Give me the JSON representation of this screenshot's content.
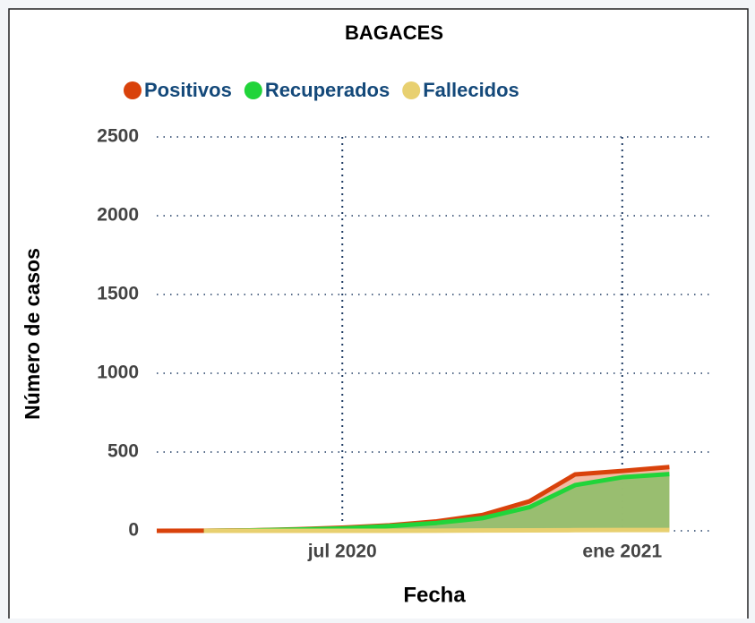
{
  "chart_data": {
    "type": "area",
    "title": "BAGACES",
    "xlabel": "Fecha",
    "ylabel": "Número de casos",
    "x": [
      "2020-03",
      "2020-04",
      "2020-05",
      "2020-06",
      "2020-07",
      "2020-08",
      "2020-09",
      "2020-10",
      "2020-11",
      "2020-12",
      "2021-01",
      "2021-02"
    ],
    "series": [
      {
        "name": "Positivos",
        "color": "#d9420b",
        "fill": "#f0b49a",
        "values": [
          0,
          1,
          3,
          10,
          20,
          35,
          60,
          100,
          187,
          358,
          380,
          405
        ]
      },
      {
        "name": "Recuperados",
        "color": "#21d43a",
        "fill": "#8fbf6a",
        "values": [
          null,
          0,
          2,
          8,
          15,
          30,
          50,
          80,
          150,
          290,
          340,
          360
        ]
      },
      {
        "name": "Fallecidos",
        "color": "#e8d070",
        "fill": "#e8d070",
        "values": [
          null,
          0,
          0,
          0,
          0,
          0,
          1,
          2,
          3,
          4,
          5,
          5
        ]
      }
    ],
    "xlim": [
      "2020-03",
      "2021-03"
    ],
    "xticks": [
      {
        "value": "2020-07",
        "label": "jul 2020"
      },
      {
        "value": "2021-01",
        "label": "ene 2021"
      }
    ],
    "ylim": [
      0,
      2500
    ],
    "yticks": [
      0,
      500,
      1000,
      1500,
      2000,
      2500
    ],
    "grid": true,
    "legend": "top"
  }
}
